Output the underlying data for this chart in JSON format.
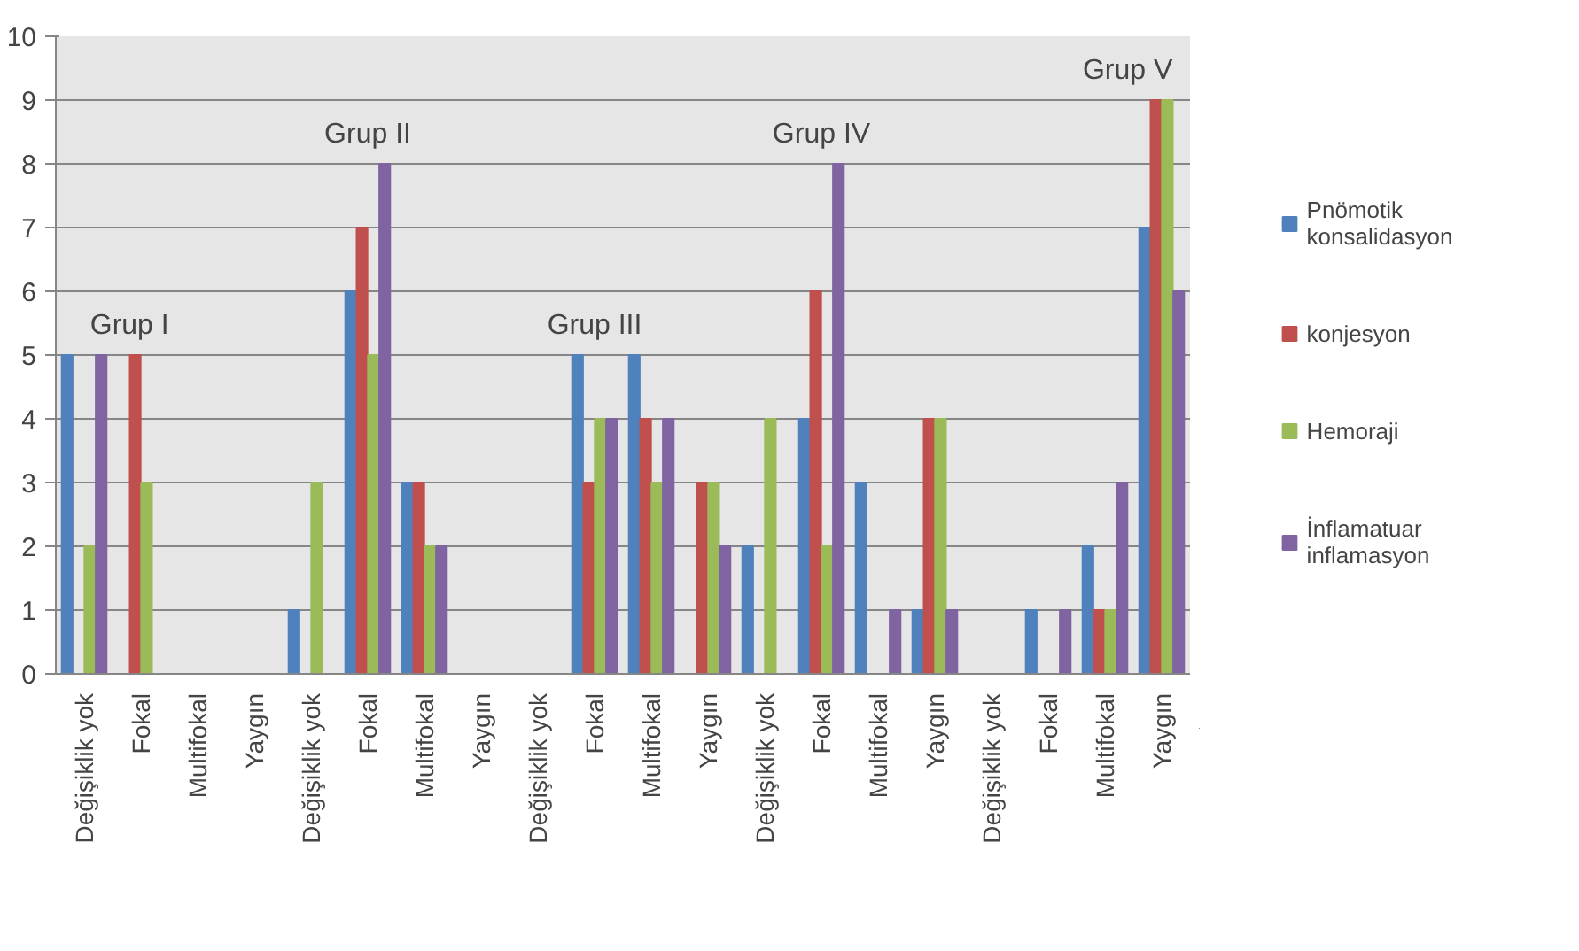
{
  "chart_data": {
    "type": "bar",
    "categories": [
      "Değişiklik yok",
      "Fokal",
      "Multifokal",
      "Yaygın",
      "Değişiklik yok",
      "Fokal",
      "Multifokal",
      "Yaygın",
      "Değişiklik yok",
      "Fokal",
      "Multifokal",
      "Yaygın",
      "Değişiklik yok",
      "Fokal",
      "Multifokal",
      "Yaygın",
      "Değişiklik yok",
      "Fokal",
      "Multifokal",
      "Yaygın"
    ],
    "series": [
      {
        "name": "Pnömotik konsalidasyon",
        "color": "#4f81bd",
        "values": [
          5,
          0,
          0,
          0,
          1,
          6,
          3,
          0,
          0,
          5,
          5,
          0,
          2,
          4,
          3,
          1,
          0,
          1,
          2,
          7
        ]
      },
      {
        "name": "konjesyon",
        "color": "#c0504d",
        "values": [
          0,
          5,
          0,
          0,
          0,
          7,
          3,
          0,
          0,
          3,
          4,
          3,
          0,
          6,
          0,
          4,
          0,
          0,
          1,
          9
        ]
      },
      {
        "name": "Hemoraji",
        "color": "#9bbb59",
        "values": [
          2,
          3,
          0,
          0,
          3,
          5,
          2,
          0,
          0,
          4,
          3,
          3,
          4,
          2,
          0,
          4,
          0,
          0,
          1,
          9
        ]
      },
      {
        "name": "İnflamatuar inflamasyon",
        "color": "#8064a2",
        "values": [
          5,
          0,
          0,
          0,
          0,
          8,
          2,
          0,
          0,
          4,
          4,
          2,
          0,
          8,
          1,
          1,
          0,
          1,
          3,
          6
        ]
      }
    ],
    "annotations": [
      "Grup I",
      "Grup II",
      "Grup III",
      "Grup IV",
      "Grup V"
    ],
    "ylim": [
      0,
      10
    ],
    "yticks": [
      0,
      1,
      2,
      3,
      4,
      5,
      6,
      7,
      8,
      9,
      10
    ],
    "grid": "y",
    "legend": "right"
  }
}
